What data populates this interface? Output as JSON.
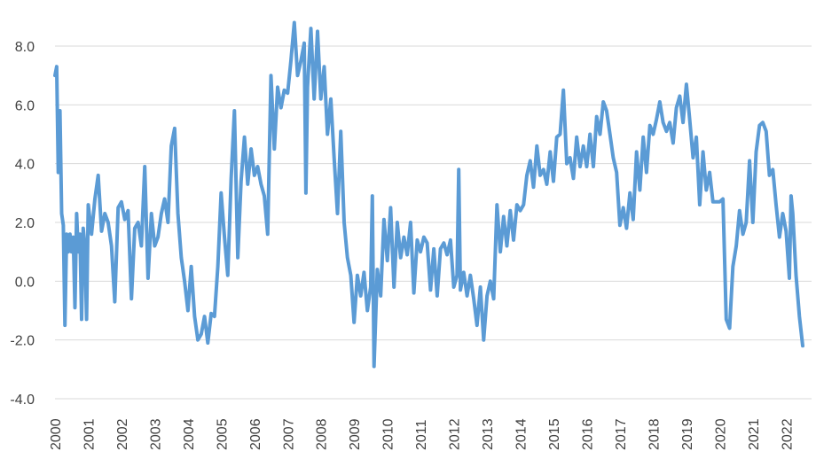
{
  "chart_data": {
    "type": "line",
    "title": "",
    "xlabel": "",
    "ylabel": "",
    "ylim": [
      -4.0,
      8.0
    ],
    "y_ticks": [
      "8.0",
      "6.0",
      "4.0",
      "2.0",
      "0.0",
      "-2.0",
      "-4.0"
    ],
    "x_ticks": [
      "2000",
      "2001",
      "2002",
      "2003",
      "2004",
      "2005",
      "2006",
      "2007",
      "2008",
      "2009",
      "2010",
      "2011",
      "2012",
      "2013",
      "2014",
      "2015",
      "2016",
      "2017",
      "2018",
      "2019",
      "2020",
      "2021",
      "2022"
    ],
    "grid": true,
    "legend": "none",
    "color": "#5b9bd5",
    "series": [
      {
        "points": [
          [
            2000.0,
            7.0
          ],
          [
            2000.05,
            7.3
          ],
          [
            2000.1,
            3.7
          ],
          [
            2000.15,
            5.8
          ],
          [
            2000.2,
            2.3
          ],
          [
            2000.25,
            1.9
          ],
          [
            2000.3,
            -1.5
          ],
          [
            2000.35,
            1.6
          ],
          [
            2000.4,
            1.0
          ],
          [
            2000.45,
            1.6
          ],
          [
            2000.5,
            1.0
          ],
          [
            2000.55,
            1.5
          ],
          [
            2000.6,
            -0.9
          ],
          [
            2000.65,
            2.3
          ],
          [
            2000.7,
            1.0
          ],
          [
            2000.75,
            1.6
          ],
          [
            2000.8,
            -1.3
          ],
          [
            2000.85,
            1.8
          ],
          [
            2000.9,
            1.2
          ],
          [
            2000.95,
            -1.3
          ],
          [
            2001.0,
            2.6
          ],
          [
            2001.1,
            1.6
          ],
          [
            2001.2,
            2.8
          ],
          [
            2001.3,
            3.6
          ],
          [
            2001.4,
            1.7
          ],
          [
            2001.5,
            2.3
          ],
          [
            2001.6,
            2.0
          ],
          [
            2001.7,
            1.2
          ],
          [
            2001.8,
            -0.7
          ],
          [
            2001.9,
            2.5
          ],
          [
            2002.0,
            2.7
          ],
          [
            2002.1,
            2.1
          ],
          [
            2002.2,
            2.4
          ],
          [
            2002.3,
            -0.6
          ],
          [
            2002.4,
            1.8
          ],
          [
            2002.5,
            2.0
          ],
          [
            2002.6,
            1.2
          ],
          [
            2002.7,
            3.9
          ],
          [
            2002.8,
            0.1
          ],
          [
            2002.9,
            2.3
          ],
          [
            2003.0,
            1.2
          ],
          [
            2003.1,
            1.5
          ],
          [
            2003.2,
            2.3
          ],
          [
            2003.3,
            2.8
          ],
          [
            2003.4,
            2.0
          ],
          [
            2003.5,
            4.6
          ],
          [
            2003.6,
            5.2
          ],
          [
            2003.7,
            2.3
          ],
          [
            2003.8,
            0.8
          ],
          [
            2003.9,
            0.0
          ],
          [
            2004.0,
            -1.0
          ],
          [
            2004.1,
            0.5
          ],
          [
            2004.2,
            -1.2
          ],
          [
            2004.3,
            -2.0
          ],
          [
            2004.4,
            -1.8
          ],
          [
            2004.5,
            -1.2
          ],
          [
            2004.6,
            -2.1
          ],
          [
            2004.7,
            -1.1
          ],
          [
            2004.8,
            -1.2
          ],
          [
            2004.9,
            0.5
          ],
          [
            2005.0,
            3.0
          ],
          [
            2005.1,
            1.5
          ],
          [
            2005.2,
            0.2
          ],
          [
            2005.3,
            3.5
          ],
          [
            2005.4,
            5.8
          ],
          [
            2005.5,
            0.8
          ],
          [
            2005.6,
            3.4
          ],
          [
            2005.7,
            4.9
          ],
          [
            2005.8,
            3.3
          ],
          [
            2005.9,
            4.5
          ],
          [
            2006.0,
            3.6
          ],
          [
            2006.1,
            3.9
          ],
          [
            2006.2,
            3.3
          ],
          [
            2006.3,
            2.9
          ],
          [
            2006.4,
            1.6
          ],
          [
            2006.5,
            7.0
          ],
          [
            2006.6,
            4.5
          ],
          [
            2006.7,
            6.6
          ],
          [
            2006.8,
            5.9
          ],
          [
            2006.9,
            6.5
          ],
          [
            2007.0,
            6.4
          ],
          [
            2007.1,
            7.5
          ],
          [
            2007.2,
            8.8
          ],
          [
            2007.3,
            7.0
          ],
          [
            2007.4,
            7.5
          ],
          [
            2007.5,
            8.1
          ],
          [
            2007.55,
            3.0
          ],
          [
            2007.6,
            6.6
          ],
          [
            2007.7,
            8.6
          ],
          [
            2007.8,
            6.2
          ],
          [
            2007.9,
            8.5
          ],
          [
            2008.0,
            6.2
          ],
          [
            2008.1,
            7.3
          ],
          [
            2008.2,
            5.0
          ],
          [
            2008.3,
            6.2
          ],
          [
            2008.4,
            4.2
          ],
          [
            2008.5,
            2.3
          ],
          [
            2008.6,
            5.1
          ],
          [
            2008.7,
            2.0
          ],
          [
            2008.8,
            0.8
          ],
          [
            2008.9,
            0.2
          ],
          [
            2009.0,
            -1.4
          ],
          [
            2009.1,
            0.2
          ],
          [
            2009.2,
            -0.5
          ],
          [
            2009.3,
            0.3
          ],
          [
            2009.4,
            -1.0
          ],
          [
            2009.5,
            -0.2
          ],
          [
            2009.55,
            2.9
          ],
          [
            2009.6,
            -2.9
          ],
          [
            2009.7,
            0.4
          ],
          [
            2009.8,
            -0.5
          ],
          [
            2009.9,
            2.1
          ],
          [
            2010.0,
            0.7
          ],
          [
            2010.1,
            2.5
          ],
          [
            2010.2,
            -0.2
          ],
          [
            2010.3,
            2.0
          ],
          [
            2010.4,
            0.8
          ],
          [
            2010.5,
            1.5
          ],
          [
            2010.6,
            0.9
          ],
          [
            2010.7,
            2.0
          ],
          [
            2010.8,
            -0.4
          ],
          [
            2010.9,
            1.4
          ],
          [
            2011.0,
            1.0
          ],
          [
            2011.1,
            1.5
          ],
          [
            2011.2,
            1.3
          ],
          [
            2011.3,
            -0.3
          ],
          [
            2011.4,
            1.1
          ],
          [
            2011.5,
            -0.5
          ],
          [
            2011.6,
            1.1
          ],
          [
            2011.7,
            1.3
          ],
          [
            2011.8,
            0.9
          ],
          [
            2011.9,
            1.4
          ],
          [
            2012.0,
            -0.2
          ],
          [
            2012.1,
            0.2
          ],
          [
            2012.15,
            3.8
          ],
          [
            2012.2,
            -0.3
          ],
          [
            2012.3,
            0.3
          ],
          [
            2012.4,
            -0.5
          ],
          [
            2012.5,
            0.2
          ],
          [
            2012.6,
            -0.6
          ],
          [
            2012.7,
            -1.5
          ],
          [
            2012.8,
            -0.2
          ],
          [
            2012.9,
            -2.0
          ],
          [
            2013.0,
            -0.5
          ],
          [
            2013.1,
            0.0
          ],
          [
            2013.2,
            -0.6
          ],
          [
            2013.3,
            2.6
          ],
          [
            2013.4,
            1.0
          ],
          [
            2013.5,
            2.2
          ],
          [
            2013.6,
            1.2
          ],
          [
            2013.7,
            2.4
          ],
          [
            2013.8,
            1.4
          ],
          [
            2013.9,
            2.6
          ],
          [
            2014.0,
            2.4
          ],
          [
            2014.1,
            2.6
          ],
          [
            2014.2,
            3.6
          ],
          [
            2014.3,
            4.1
          ],
          [
            2014.4,
            3.2
          ],
          [
            2014.5,
            4.6
          ],
          [
            2014.6,
            3.6
          ],
          [
            2014.7,
            3.8
          ],
          [
            2014.8,
            3.3
          ],
          [
            2014.9,
            4.4
          ],
          [
            2015.0,
            3.4
          ],
          [
            2015.1,
            4.9
          ],
          [
            2015.2,
            5.0
          ],
          [
            2015.3,
            6.5
          ],
          [
            2015.4,
            4.0
          ],
          [
            2015.5,
            4.2
          ],
          [
            2015.6,
            3.5
          ],
          [
            2015.7,
            4.9
          ],
          [
            2015.8,
            3.9
          ],
          [
            2015.9,
            4.6
          ],
          [
            2016.0,
            3.9
          ],
          [
            2016.1,
            5.0
          ],
          [
            2016.2,
            3.9
          ],
          [
            2016.3,
            5.6
          ],
          [
            2016.4,
            5.0
          ],
          [
            2016.5,
            6.1
          ],
          [
            2016.6,
            5.8
          ],
          [
            2016.7,
            5.0
          ],
          [
            2016.8,
            4.2
          ],
          [
            2016.9,
            3.7
          ],
          [
            2017.0,
            1.9
          ],
          [
            2017.1,
            2.5
          ],
          [
            2017.2,
            1.8
          ],
          [
            2017.3,
            3.0
          ],
          [
            2017.4,
            2.1
          ],
          [
            2017.5,
            4.4
          ],
          [
            2017.6,
            3.1
          ],
          [
            2017.7,
            4.9
          ],
          [
            2017.8,
            3.7
          ],
          [
            2017.9,
            5.3
          ],
          [
            2018.0,
            5.0
          ],
          [
            2018.1,
            5.5
          ],
          [
            2018.2,
            6.1
          ],
          [
            2018.3,
            5.4
          ],
          [
            2018.4,
            5.1
          ],
          [
            2018.5,
            5.4
          ],
          [
            2018.6,
            4.7
          ],
          [
            2018.7,
            5.9
          ],
          [
            2018.8,
            6.3
          ],
          [
            2018.9,
            5.4
          ],
          [
            2019.0,
            6.7
          ],
          [
            2019.1,
            5.5
          ],
          [
            2019.2,
            4.2
          ],
          [
            2019.3,
            4.9
          ],
          [
            2019.4,
            2.6
          ],
          [
            2019.5,
            4.4
          ],
          [
            2019.6,
            3.1
          ],
          [
            2019.7,
            3.7
          ],
          [
            2019.8,
            2.7
          ],
          [
            2019.9,
            2.7
          ],
          [
            2020.0,
            2.7
          ],
          [
            2020.1,
            2.8
          ],
          [
            2020.2,
            -1.3
          ],
          [
            2020.3,
            -1.6
          ],
          [
            2020.4,
            0.5
          ],
          [
            2020.5,
            1.2
          ],
          [
            2020.6,
            2.4
          ],
          [
            2020.7,
            1.6
          ],
          [
            2020.8,
            2.0
          ],
          [
            2020.9,
            4.1
          ],
          [
            2021.0,
            2.0
          ],
          [
            2021.1,
            4.4
          ],
          [
            2021.2,
            5.3
          ],
          [
            2021.3,
            5.4
          ],
          [
            2021.4,
            5.1
          ],
          [
            2021.5,
            3.6
          ],
          [
            2021.6,
            3.8
          ],
          [
            2021.7,
            2.6
          ],
          [
            2021.8,
            1.5
          ],
          [
            2021.9,
            2.3
          ],
          [
            2022.0,
            1.7
          ],
          [
            2022.1,
            0.1
          ],
          [
            2022.15,
            2.9
          ],
          [
            2022.2,
            2.3
          ],
          [
            2022.3,
            0.2
          ],
          [
            2022.4,
            -1.2
          ],
          [
            2022.5,
            -2.2
          ]
        ]
      }
    ]
  }
}
